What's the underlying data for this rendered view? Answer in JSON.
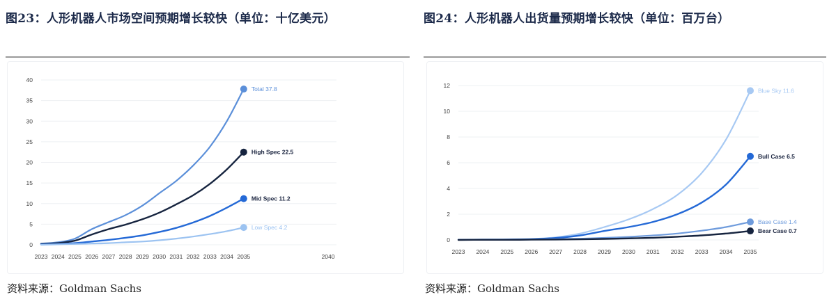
{
  "charts": [
    {
      "title": "图23：人形机器人市场空间预期增长较快（单位：十亿美元）",
      "source": "资料来源：Goldman Sachs"
    },
    {
      "title": "图24：人形机器人出货量预期增长较快（单位：百万台）",
      "source": "资料来源：Goldman Sachs"
    }
  ],
  "chart_data": [
    {
      "type": "line",
      "title": "图23：人形机器人市场空间预期增长较快（单位：十亿美元）",
      "xlabel": "",
      "ylabel": "",
      "x": [
        2023,
        2024,
        2025,
        2026,
        2027,
        2028,
        2029,
        2030,
        2031,
        2032,
        2033,
        2034,
        2035
      ],
      "x_ticks": [
        "2023",
        "2024",
        "2025",
        "2026",
        "2027",
        "2028",
        "2029",
        "2030",
        "2031",
        "2032",
        "2033",
        "2034",
        "2035",
        "2040"
      ],
      "x_range": [
        2023,
        2040
      ],
      "y_ticks": [
        0,
        5,
        10,
        15,
        20,
        25,
        30,
        35,
        40
      ],
      "ylim": [
        0,
        40
      ],
      "grid": "horizontal",
      "series": [
        {
          "name": "Total",
          "label": "Total 37.8",
          "color": "#5b8fd9",
          "width": 2.2,
          "label_bold": false,
          "values": [
            0.3,
            0.6,
            1.5,
            3.8,
            5.5,
            7.2,
            9.5,
            12.5,
            15.5,
            19.2,
            23.8,
            30.0,
            37.8
          ]
        },
        {
          "name": "High Spec",
          "label": "High Spec 22.5",
          "color": "#16243f",
          "width": 2.4,
          "label_bold": true,
          "values": [
            0.2,
            0.4,
            1.0,
            2.5,
            3.8,
            4.9,
            6.2,
            7.8,
            9.8,
            12.0,
            14.8,
            18.3,
            22.5
          ]
        },
        {
          "name": "Mid Spec",
          "label": "Mid Spec 11.2",
          "color": "#2469d6",
          "width": 2.4,
          "label_bold": true,
          "values": [
            0.1,
            0.2,
            0.4,
            0.8,
            1.2,
            1.7,
            2.3,
            3.1,
            4.1,
            5.4,
            7.0,
            9.0,
            11.2
          ]
        },
        {
          "name": "Low Spec",
          "label": "Low Spec 4.2",
          "color": "#9cc3f1",
          "width": 2.2,
          "label_bold": false,
          "values": [
            0.0,
            0.1,
            0.2,
            0.3,
            0.4,
            0.6,
            0.8,
            1.1,
            1.5,
            2.0,
            2.6,
            3.3,
            4.2
          ]
        }
      ]
    },
    {
      "type": "line",
      "title": "图24：人形机器人出货量预期增长较快（单位：百万台）",
      "xlabel": "",
      "ylabel": "",
      "x": [
        2023,
        2024,
        2025,
        2026,
        2027,
        2028,
        2029,
        2030,
        2031,
        2032,
        2033,
        2034,
        2035
      ],
      "x_ticks": [
        "2023",
        "2024",
        "2025",
        "2026",
        "2027",
        "2028",
        "2029",
        "2030",
        "2031",
        "2032",
        "2033",
        "2034",
        "2035"
      ],
      "x_range": [
        2023,
        2035
      ],
      "y_ticks": [
        0,
        2,
        4,
        6,
        8,
        10,
        12
      ],
      "ylim": [
        0,
        12
      ],
      "grid": "horizontal",
      "series": [
        {
          "name": "Blue Sky",
          "label": "Blue Sky 11.6",
          "color": "#a7c9f3",
          "width": 2.2,
          "label_bold": false,
          "values": [
            0.02,
            0.03,
            0.05,
            0.08,
            0.2,
            0.5,
            1.0,
            1.6,
            2.4,
            3.5,
            5.2,
            7.8,
            11.6
          ]
        },
        {
          "name": "Bull Case",
          "label": "Bull Case 6.5",
          "color": "#2469d6",
          "width": 2.4,
          "label_bold": true,
          "values": [
            0.01,
            0.02,
            0.03,
            0.06,
            0.15,
            0.35,
            0.7,
            1.0,
            1.4,
            2.0,
            2.9,
            4.3,
            6.5
          ]
        },
        {
          "name": "Base Case",
          "label": "Base Case 1.4",
          "color": "#6e9bdc",
          "width": 2.2,
          "label_bold": false,
          "values": [
            0.01,
            0.01,
            0.02,
            0.03,
            0.06,
            0.1,
            0.16,
            0.24,
            0.35,
            0.5,
            0.72,
            1.0,
            1.4
          ]
        },
        {
          "name": "Bear Case",
          "label": "Bear Case 0.7",
          "color": "#16243f",
          "width": 2.4,
          "label_bold": true,
          "values": [
            0.0,
            0.01,
            0.01,
            0.02,
            0.03,
            0.05,
            0.08,
            0.12,
            0.17,
            0.25,
            0.35,
            0.5,
            0.7
          ]
        }
      ]
    }
  ]
}
